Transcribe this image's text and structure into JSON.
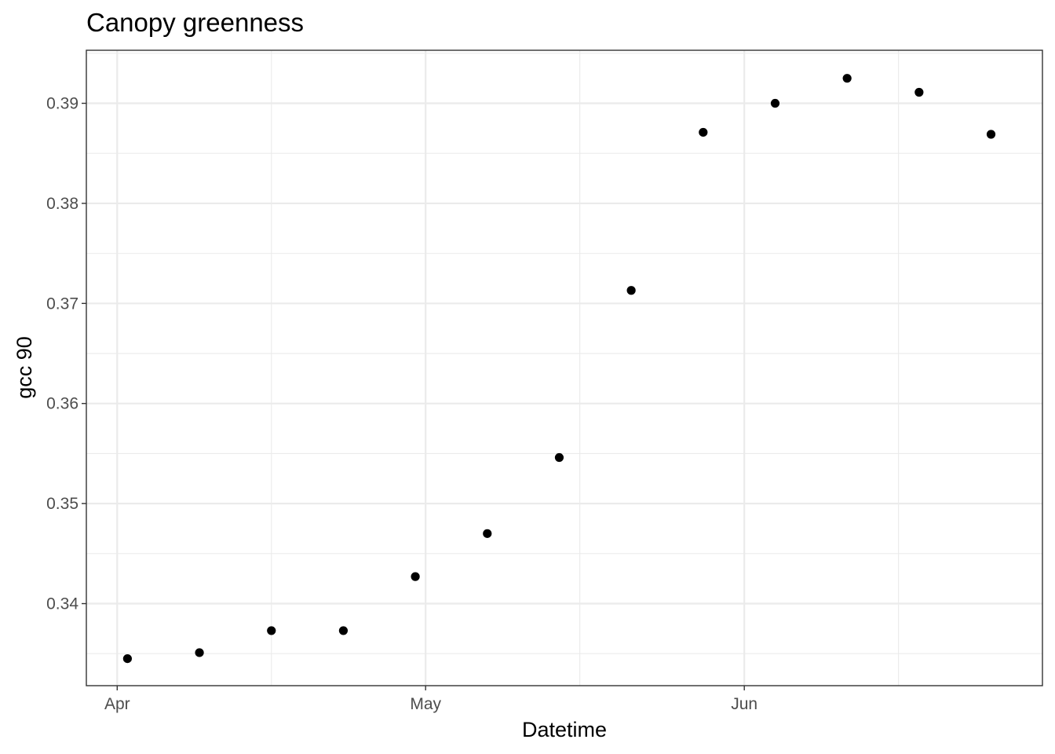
{
  "chart_data": {
    "type": "scatter",
    "title": "Canopy greenness",
    "xlabel": "Datetime",
    "ylabel": "gcc 90",
    "x_type": "date",
    "xlim": [
      "2023-03-29",
      "2023-06-30"
    ],
    "ylim": [
      0.3318,
      0.3953
    ],
    "x_ticks": [
      {
        "label": "Apr",
        "date": "2023-04-01"
      },
      {
        "label": "May",
        "date": "2023-05-01"
      },
      {
        "label": "Jun",
        "date": "2023-06-01"
      }
    ],
    "x_minor_ticks": [
      "2023-04-16",
      "2023-05-16",
      "2023-06-16"
    ],
    "y_ticks": [
      0.34,
      0.35,
      0.36,
      0.37,
      0.38,
      0.39
    ],
    "y_tick_labels": [
      "0.34",
      "0.35",
      "0.36",
      "0.37",
      "0.38",
      "0.39"
    ],
    "grid": true,
    "legend": "none",
    "point_color": "#000000",
    "points": [
      {
        "x": "2023-04-02",
        "y": 0.3345
      },
      {
        "x": "2023-04-09",
        "y": 0.3351
      },
      {
        "x": "2023-04-16",
        "y": 0.3373
      },
      {
        "x": "2023-04-23",
        "y": 0.3373
      },
      {
        "x": "2023-04-30",
        "y": 0.3427
      },
      {
        "x": "2023-05-07",
        "y": 0.347
      },
      {
        "x": "2023-05-14",
        "y": 0.3546
      },
      {
        "x": "2023-05-21",
        "y": 0.3713
      },
      {
        "x": "2023-05-28",
        "y": 0.3871
      },
      {
        "x": "2023-06-04",
        "y": 0.39
      },
      {
        "x": "2023-06-11",
        "y": 0.3925
      },
      {
        "x": "2023-06-18",
        "y": 0.3911
      },
      {
        "x": "2023-06-25",
        "y": 0.3869
      }
    ]
  }
}
